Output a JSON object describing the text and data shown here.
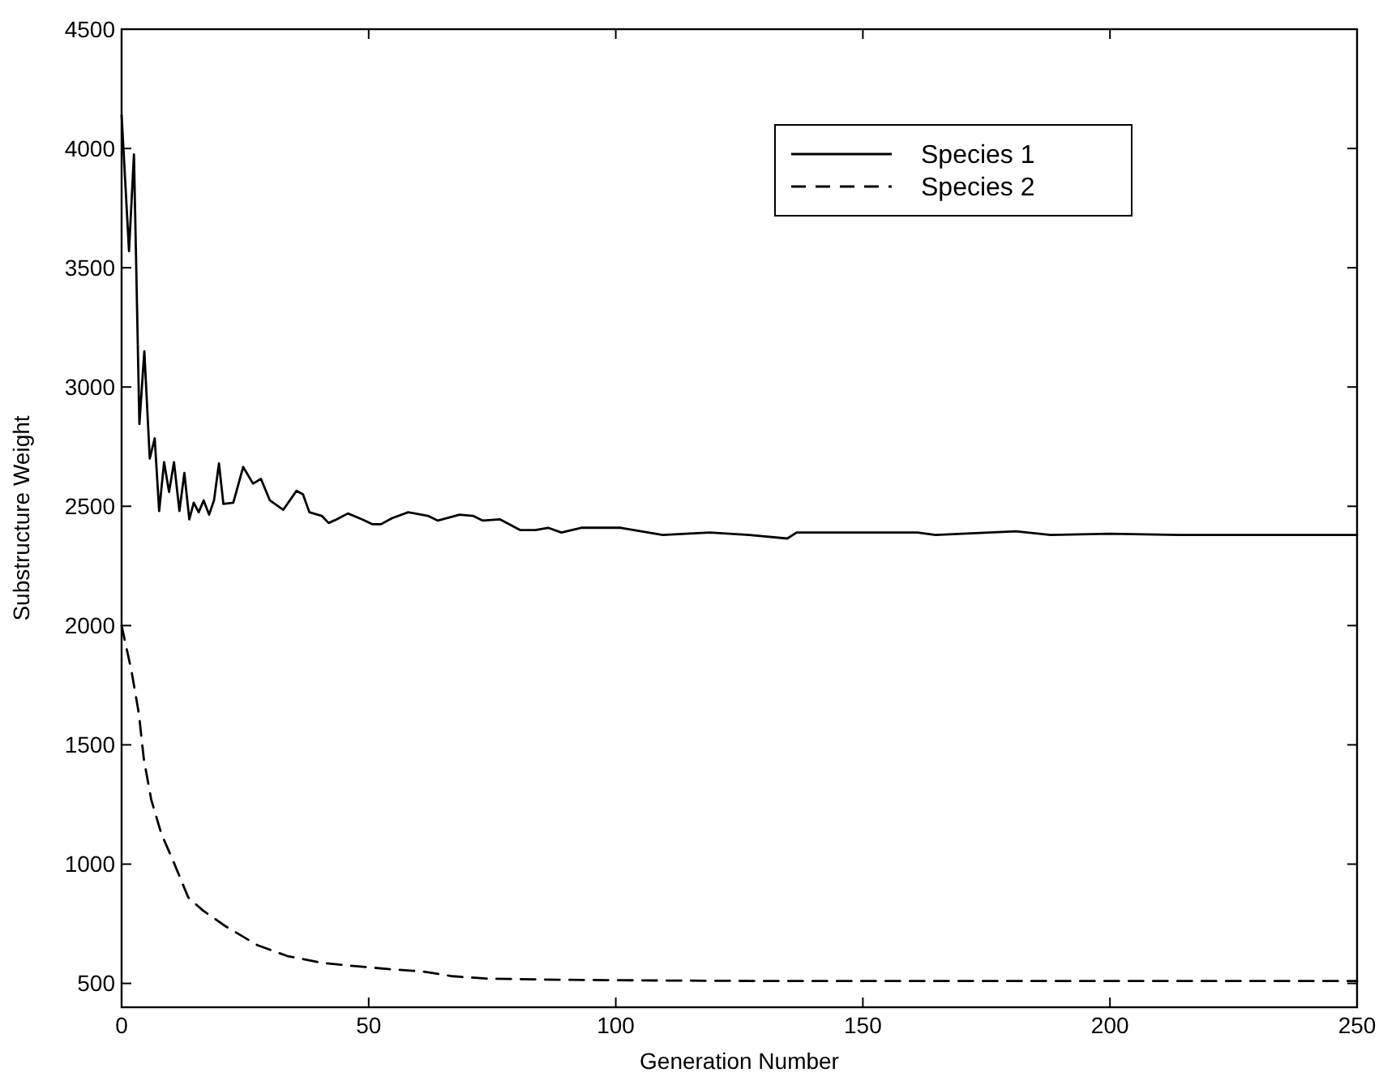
{
  "chart_data": {
    "type": "line",
    "xlabel": "Generation Number",
    "ylabel": "Substructure Weight",
    "xlim": [
      0,
      250
    ],
    "ylim": [
      400,
      4500
    ],
    "xticks": [
      0,
      50,
      100,
      150,
      200,
      250
    ],
    "yticks": [
      500,
      1000,
      1500,
      2000,
      2500,
      3000,
      3500,
      4000,
      4500
    ],
    "legend": "top right",
    "series": [
      {
        "name": "Species 1",
        "color": "#000000",
        "line_style": "solid",
        "x": [
          0,
          1.5,
          2.5,
          3.6,
          4.6,
          5.7,
          6.7,
          7.6,
          8.6,
          9.6,
          10.6,
          11.7,
          12.7,
          13.7,
          14.6,
          15.6,
          16.6,
          17.7,
          18.7,
          19.7,
          20.6,
          22.6,
          24.6,
          26.6,
          28.2,
          30,
          32.7,
          35.4,
          36.7,
          38,
          40.5,
          41.9,
          43.5,
          45.8,
          48.7,
          50.7,
          52.5,
          54.7,
          58,
          62,
          64,
          68.4,
          71.1,
          73.1,
          76.6,
          80.7,
          83.7,
          86.3,
          89,
          93,
          101,
          109.5,
          119,
          127,
          134.7,
          136.6,
          161,
          164.7,
          181,
          188,
          200,
          214,
          227.6,
          250
        ],
        "values": [
          4140,
          3570,
          3975,
          2845,
          3150,
          2700,
          2785,
          2480,
          2685,
          2560,
          2685,
          2480,
          2640,
          2445,
          2515,
          2475,
          2525,
          2465,
          2525,
          2680,
          2510,
          2515,
          2665,
          2595,
          2615,
          2525,
          2485,
          2565,
          2550,
          2475,
          2460,
          2430,
          2445,
          2470,
          2445,
          2425,
          2425,
          2450,
          2475,
          2460,
          2440,
          2465,
          2460,
          2440,
          2445,
          2400,
          2400,
          2410,
          2390,
          2410,
          2410,
          2380,
          2390,
          2380,
          2365,
          2390,
          2390,
          2380,
          2395,
          2380,
          2385,
          2380,
          2380,
          2380
        ]
      },
      {
        "name": "Species 2",
        "color": "#000000",
        "line_style": "dashed",
        "x": [
          0,
          2,
          3.5,
          4.5,
          6,
          8,
          10.5,
          13.5,
          16.5,
          21,
          27.5,
          33.5,
          40.5,
          47,
          54,
          61,
          67,
          74,
          90,
          110,
          130,
          150,
          175,
          200,
          225,
          250
        ],
        "values": [
          2000,
          1810,
          1630,
          1440,
          1270,
          1130,
          1010,
          860,
          805,
          740,
          660,
          615,
          586,
          573,
          560,
          550,
          530,
          520,
          515,
          512,
          510,
          510,
          510,
          510,
          510,
          510
        ]
      }
    ]
  }
}
